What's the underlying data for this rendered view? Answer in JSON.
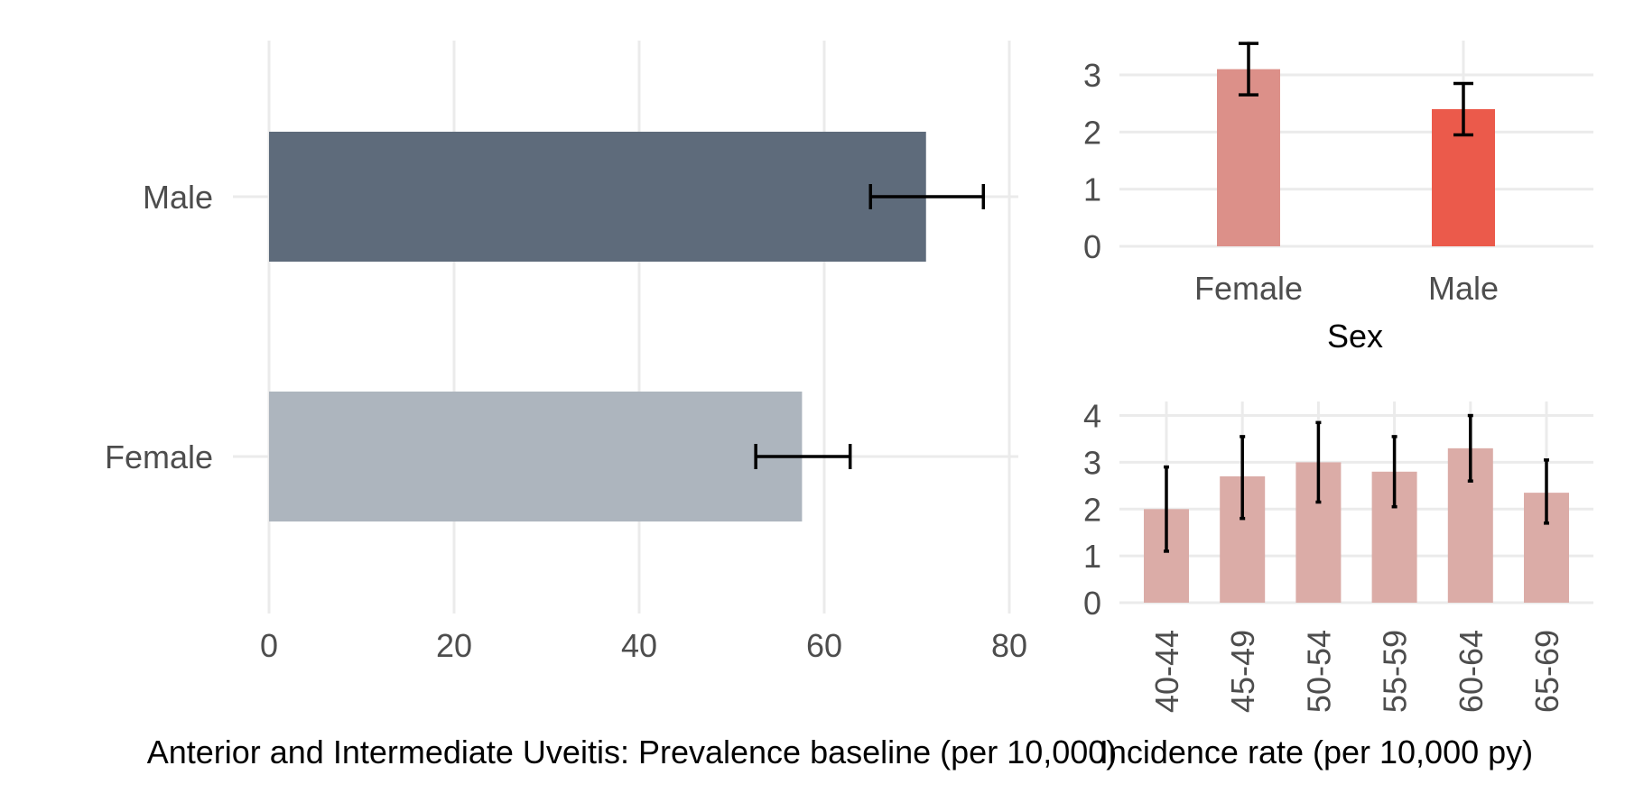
{
  "chart_data": [
    {
      "type": "bar",
      "orientation": "horizontal",
      "categories": [
        "Male",
        "Female"
      ],
      "values": [
        71,
        57.6
      ],
      "errors": [
        [
          65,
          77.2
        ],
        [
          52.6,
          62.8
        ]
      ],
      "colors": [
        "#5e6b7b",
        "#adb5be"
      ],
      "xlim": [
        0,
        80
      ],
      "xticks": [
        "0",
        "20",
        "40",
        "60",
        "80"
      ],
      "xlabel": "Anterior and Intermediate Uveitis: Prevalence baseline (per 10,000)",
      "ylabel": "",
      "grid": true
    },
    {
      "type": "bar",
      "categories": [
        "Female",
        "Male"
      ],
      "values": [
        3.1,
        2.4
      ],
      "errors": [
        [
          2.65,
          3.55
        ],
        [
          1.95,
          2.85
        ]
      ],
      "colors": [
        "#dc9089",
        "#eb5a4b"
      ],
      "ylim": [
        0,
        3.6
      ],
      "yticks": [
        "0",
        "1",
        "2",
        "3"
      ],
      "xlabel": "Sex",
      "ylabel": "",
      "grid": true
    },
    {
      "type": "bar",
      "categories": [
        "40-44",
        "45-49",
        "50-54",
        "55-59",
        "60-64",
        "65-69"
      ],
      "values": [
        2.0,
        2.7,
        3.0,
        2.8,
        3.3,
        2.35
      ],
      "errors": [
        [
          1.1,
          2.9
        ],
        [
          1.8,
          3.55
        ],
        [
          2.15,
          3.85
        ],
        [
          2.05,
          3.55
        ],
        [
          2.6,
          4.0
        ],
        [
          1.7,
          3.05
        ]
      ],
      "color": "#dbaca7",
      "ylim": [
        0,
        4.3
      ],
      "yticks": [
        "0",
        "1",
        "2",
        "3",
        "4"
      ],
      "xlabel": "Incidence rate (per 10,000 py)",
      "ylabel": "",
      "grid": true
    }
  ]
}
